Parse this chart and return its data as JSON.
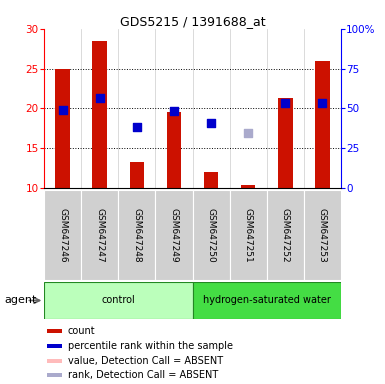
{
  "title": "GDS5215 / 1391688_at",
  "samples": [
    "GSM647246",
    "GSM647247",
    "GSM647248",
    "GSM647249",
    "GSM647250",
    "GSM647251",
    "GSM647252",
    "GSM647253"
  ],
  "count_values": [
    25.0,
    28.5,
    13.3,
    19.5,
    12.0,
    10.4,
    21.3,
    26.0
  ],
  "rank_values": [
    19.8,
    21.3,
    17.7,
    19.7,
    18.2,
    null,
    20.7,
    20.7
  ],
  "rank_absent_values": [
    null,
    null,
    null,
    null,
    null,
    16.9,
    null,
    null
  ],
  "count_absent_values": [
    null,
    null,
    null,
    null,
    null,
    null,
    null,
    null
  ],
  "detection_absent": [
    false,
    false,
    false,
    false,
    false,
    true,
    false,
    false
  ],
  "groups": [
    "control",
    "control",
    "control",
    "control",
    "hydrogen-saturated water",
    "hydrogen-saturated water",
    "hydrogen-saturated water",
    "hydrogen-saturated water"
  ],
  "group_colors": {
    "control": "#bbffbb",
    "hydrogen-saturated water": "#44dd44"
  },
  "bar_color": "#cc1100",
  "rank_color": "#0000cc",
  "rank_absent_color": "#aaaacc",
  "count_absent_color": "#ffbbbb",
  "ylim_left": [
    10,
    30
  ],
  "ylim_right": [
    0,
    100
  ],
  "yticks_left": [
    10,
    15,
    20,
    25,
    30
  ],
  "yticks_right": [
    0,
    25,
    50,
    75,
    100
  ],
  "ytick_labels_right": [
    "0",
    "25",
    "50",
    "75",
    "100%"
  ],
  "bar_width": 0.4,
  "agent_label": "agent",
  "legend_items": [
    {
      "color": "#cc1100",
      "label": "count"
    },
    {
      "color": "#0000cc",
      "label": "percentile rank within the sample"
    },
    {
      "color": "#ffbbbb",
      "label": "value, Detection Call = ABSENT"
    },
    {
      "color": "#aaaacc",
      "label": "rank, Detection Call = ABSENT"
    }
  ]
}
